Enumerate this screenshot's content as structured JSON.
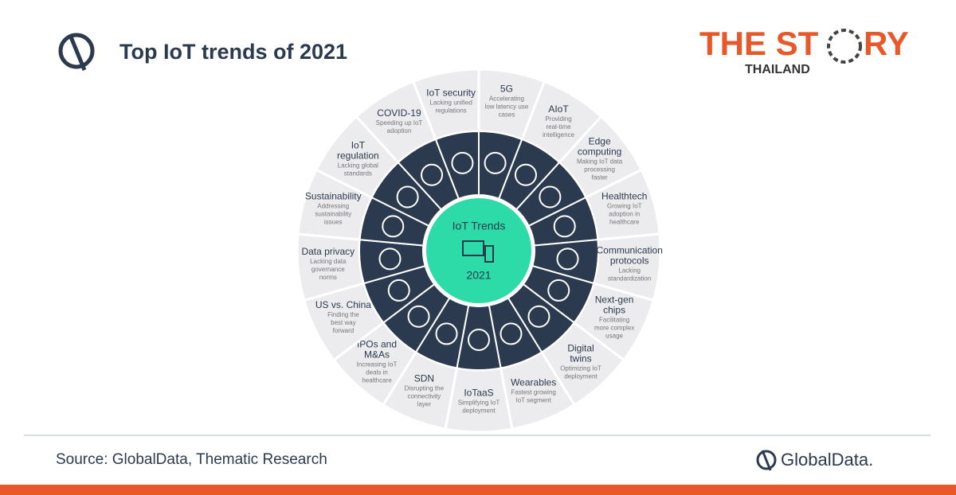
{
  "header": {
    "title": "Top IoT trends of 2021"
  },
  "brand": {
    "line1a": "THE ST",
    "line1b": "RY",
    "line2": "THAILAND"
  },
  "wheel": {
    "center_title": "IoT Trends",
    "center_year": "2021",
    "segments": [
      {
        "title": "IoT security",
        "subtitle": "Lacking unified regulations"
      },
      {
        "title": "5G",
        "subtitle": "Accelerating low latency use cases"
      },
      {
        "title": "AIoT",
        "subtitle": "Providing real-time intelligence"
      },
      {
        "title": "Edge computing",
        "subtitle": "Making IoT data processing faster"
      },
      {
        "title": "Healthtech",
        "subtitle": "Growing IoT adoption in healthcare"
      },
      {
        "title": "Communication protocols",
        "subtitle": "Lacking standardization"
      },
      {
        "title": "Next-gen chips",
        "subtitle": "Facilitating more complex usage"
      },
      {
        "title": "Digital twins",
        "subtitle": "Optimizing IoT deployment"
      },
      {
        "title": "Wearables",
        "subtitle": "Fastest growing IoT segment"
      },
      {
        "title": "IoTaaS",
        "subtitle": "Simplifying IoT deployment"
      },
      {
        "title": "SDN",
        "subtitle": "Disrupting the connectivity layer"
      },
      {
        "title": "IPOs and M&As",
        "subtitle": "Increasing IoT deals in healthcare"
      },
      {
        "title": "US vs. China",
        "subtitle": "Finding the best way forward"
      },
      {
        "title": "Data privacy",
        "subtitle": "Lacking data governance norms"
      },
      {
        "title": "Sustainability",
        "subtitle": "Addressing sustainability issues"
      },
      {
        "title": "IoT regulation",
        "subtitle": "Lacking global standards"
      },
      {
        "title": "COVID-19",
        "subtitle": "Speeding up IoT adoption"
      }
    ]
  },
  "footer": {
    "source": "Source: GlobalData, Thematic Research",
    "logo": "GlobalData."
  }
}
